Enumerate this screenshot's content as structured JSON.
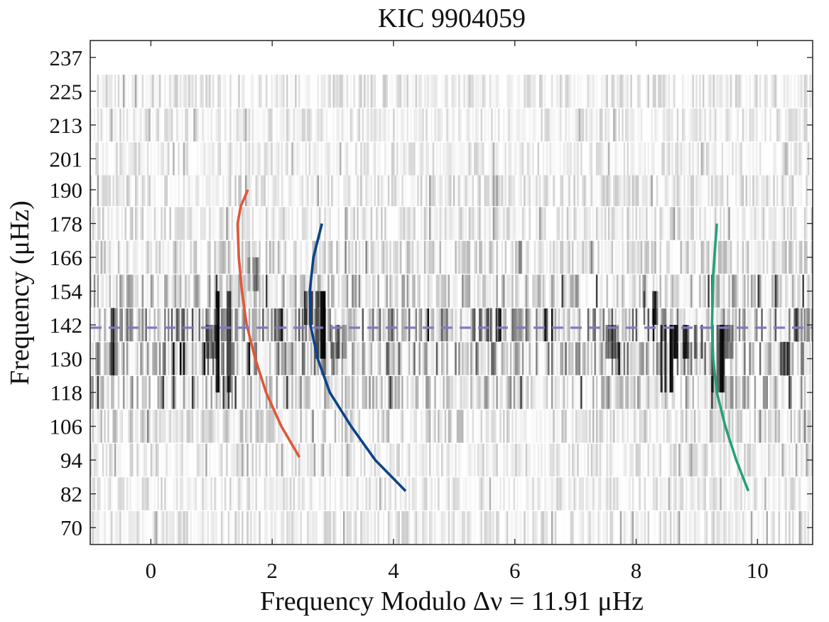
{
  "chart_data": {
    "type": "echelle_diagram",
    "title": "KIC 9904059",
    "xlabel": "Frequency Modulo Δν = 11.91 μHz",
    "ylabel": "Frequency (μHz)",
    "delta_nu": 11.91,
    "xlim": [
      -1.0,
      10.91
    ],
    "ylim": [
      64.0,
      243.0
    ],
    "xticks": [
      0,
      2,
      4,
      6,
      8,
      10
    ],
    "yticks": [
      70,
      82,
      94,
      106,
      118,
      130,
      142,
      154,
      166,
      178,
      190,
      201,
      213,
      225,
      237
    ],
    "grid": false,
    "rows": [
      {
        "center": 70,
        "intensity": 0.25
      },
      {
        "center": 82,
        "intensity": 0.22
      },
      {
        "center": 94,
        "intensity": 0.25
      },
      {
        "center": 106,
        "intensity": 0.35
      },
      {
        "center": 118,
        "intensity": 0.55
      },
      {
        "center": 130,
        "intensity": 0.75
      },
      {
        "center": 142,
        "intensity": 0.8
      },
      {
        "center": 154,
        "intensity": 0.55
      },
      {
        "center": 166,
        "intensity": 0.35
      },
      {
        "center": 178,
        "intensity": 0.28
      },
      {
        "center": 190,
        "intensity": 0.27
      },
      {
        "center": 201,
        "intensity": 0.22
      },
      {
        "center": 213,
        "intensity": 0.22
      },
      {
        "center": 225,
        "intensity": 0.25
      }
    ],
    "modes": [
      {
        "x": 1.15,
        "y0": 118,
        "y1": 154,
        "strength": 1.0
      },
      {
        "x": 0.95,
        "y0": 130,
        "y1": 142,
        "strength": 0.7
      },
      {
        "x": 2.75,
        "y0": 130,
        "y1": 154,
        "strength": 1.0
      },
      {
        "x": 2.55,
        "y0": 142,
        "y1": 154,
        "strength": 0.6
      },
      {
        "x": 1.65,
        "y0": 154,
        "y1": 166,
        "strength": 0.4
      },
      {
        "x": 9.3,
        "y0": 118,
        "y1": 142,
        "strength": 1.0
      },
      {
        "x": 8.45,
        "y0": 118,
        "y1": 142,
        "strength": 0.9
      },
      {
        "x": 8.7,
        "y0": 130,
        "y1": 142,
        "strength": 0.9
      },
      {
        "x": 8.2,
        "y0": 142,
        "y1": 154,
        "strength": 0.7
      },
      {
        "x": 9.0,
        "y0": 130,
        "y1": 142,
        "strength": 0.6
      },
      {
        "x": 7.6,
        "y0": 130,
        "y1": 142,
        "strength": 0.6
      },
      {
        "x": 9.55,
        "y0": 130,
        "y1": 142,
        "strength": 0.6
      },
      {
        "x": 10.45,
        "y0": 124,
        "y1": 136,
        "strength": 0.5
      },
      {
        "x": 10.7,
        "y0": 136,
        "y1": 148,
        "strength": 0.5
      },
      {
        "x": -0.7,
        "y0": 124,
        "y1": 148,
        "strength": 0.6
      },
      {
        "x": 5.65,
        "y0": 136,
        "y1": 148,
        "strength": 0.8
      },
      {
        "x": 3.05,
        "y0": 130,
        "y1": 142,
        "strength": 0.5
      }
    ],
    "series": [
      {
        "name": "red ridge",
        "color": "#e05638",
        "x": [
          2.45,
          2.15,
          1.9,
          1.72,
          1.58,
          1.5,
          1.45,
          1.43,
          1.48,
          1.6
        ],
        "y": [
          95,
          106,
          118,
          130,
          142,
          154,
          166,
          178,
          184,
          190
        ]
      },
      {
        "name": "blue ridge",
        "color": "#0d4288",
        "x": [
          4.2,
          3.7,
          3.3,
          2.95,
          2.75,
          2.63,
          2.62,
          2.68,
          2.82
        ],
        "y": [
          83,
          94,
          106,
          118,
          130,
          142,
          154,
          166,
          178
        ]
      },
      {
        "name": "green ridge",
        "color": "#25a07b",
        "x": [
          9.85,
          9.65,
          9.47,
          9.33,
          9.27,
          9.25,
          9.27,
          9.33
        ],
        "y": [
          83,
          94,
          106,
          118,
          130,
          142,
          160,
          178
        ]
      }
    ],
    "reference_line": {
      "y": 141.0,
      "color": "#8478c0",
      "style": "dashed"
    }
  }
}
